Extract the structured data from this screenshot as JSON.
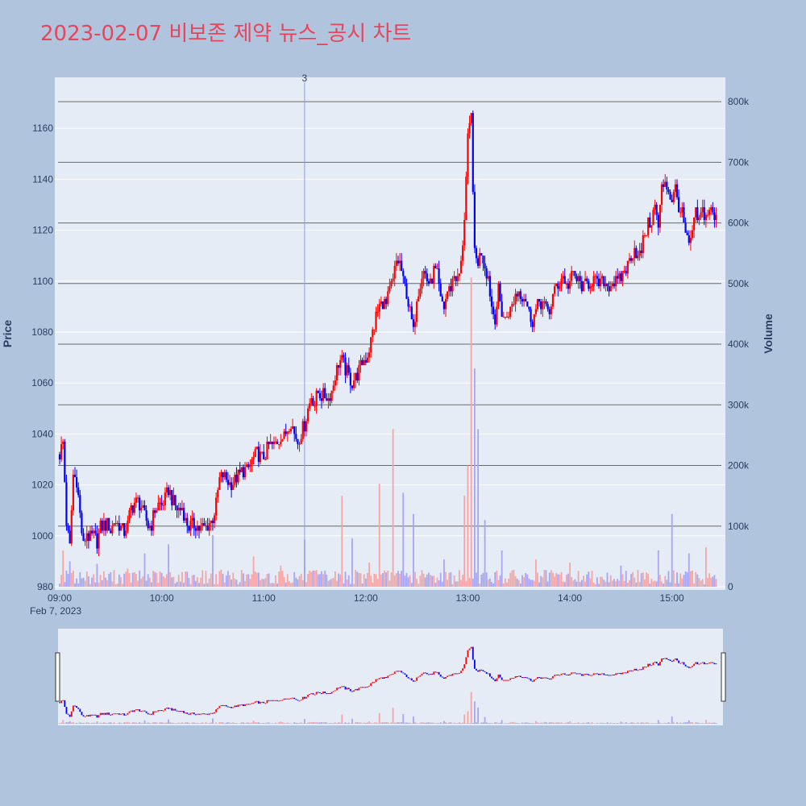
{
  "title": "2023-02-07 비보존 제약 뉴스_공시 차트",
  "colors": {
    "background": "#b0c4de",
    "plot_bg": "#e5ecf6",
    "title": "#e8455a",
    "up": "#ff0000",
    "down": "#0000ff",
    "volume_up": "#f4a6a6",
    "volume_down": "#a6a6f4",
    "annotation_line": "#8a9cf0",
    "volume_grid": "#6a6a6a"
  },
  "chart_data": {
    "type": "candlestick",
    "title": "2023-02-07 비보존 제약 뉴스_공시 차트",
    "ylabel": "Price",
    "y2label": "Volume",
    "date_label": "Feb 7, 2023",
    "xlim": [
      "09:00",
      "15:30"
    ],
    "ylim": [
      980,
      1180
    ],
    "y2lim": [
      0,
      840000
    ],
    "y_ticks": [
      980,
      1000,
      1020,
      1040,
      1060,
      1080,
      1100,
      1120,
      1140,
      1160
    ],
    "y_tick_labels": [
      "980",
      "1000",
      "1020",
      "1040",
      "1060",
      "1080",
      "1100",
      "1120",
      "1140",
      "1160"
    ],
    "y2_ticks": [
      0,
      100000,
      200000,
      300000,
      400000,
      500000,
      600000,
      700000,
      800000
    ],
    "y2_tick_labels": [
      "0",
      "100k",
      "200k",
      "300k",
      "400k",
      "500k",
      "600k",
      "700k",
      "800k"
    ],
    "x_ticks": [
      "09:00",
      "10:00",
      "11:00",
      "12:00",
      "13:00",
      "14:00",
      "15:00"
    ],
    "annotation": {
      "time": "11:24",
      "label": "3"
    },
    "price_path": [
      [
        "09:00",
        1032
      ],
      [
        "09:02",
        1037
      ],
      [
        "09:04",
        1005
      ],
      [
        "09:06",
        995
      ],
      [
        "09:08",
        1024
      ],
      [
        "09:10",
        1022
      ],
      [
        "09:12",
        1008
      ],
      [
        "09:14",
        996
      ],
      [
        "09:16",
        1001
      ],
      [
        "09:18",
        999
      ],
      [
        "09:20",
        1000
      ],
      [
        "09:22",
        998
      ],
      [
        "09:24",
        1003
      ],
      [
        "09:26",
        1004
      ],
      [
        "09:28",
        1005
      ],
      [
        "09:30",
        1002
      ],
      [
        "09:32",
        1006
      ],
      [
        "09:34",
        1005
      ],
      [
        "09:36",
        1003
      ],
      [
        "09:38",
        1002
      ],
      [
        "09:40",
        1004
      ],
      [
        "09:42",
        1011
      ],
      [
        "09:44",
        1013
      ],
      [
        "09:46",
        1014
      ],
      [
        "09:48",
        1011
      ],
      [
        "09:50",
        1008
      ],
      [
        "09:52",
        1004
      ],
      [
        "09:54",
        1005
      ],
      [
        "09:56",
        1010
      ],
      [
        "09:58",
        1012
      ],
      [
        "10:00",
        1012
      ],
      [
        "10:02",
        1014
      ],
      [
        "10:04",
        1018
      ],
      [
        "10:06",
        1015
      ],
      [
        "10:08",
        1012
      ],
      [
        "10:10",
        1010
      ],
      [
        "10:12",
        1011
      ],
      [
        "10:14",
        1006
      ],
      [
        "10:16",
        1004
      ],
      [
        "10:18",
        1004
      ],
      [
        "10:20",
        1004
      ],
      [
        "10:22",
        1003
      ],
      [
        "10:24",
        1003
      ],
      [
        "10:26",
        1003
      ],
      [
        "10:28",
        1005
      ],
      [
        "10:30",
        1007
      ],
      [
        "10:32",
        1012
      ],
      [
        "10:34",
        1022
      ],
      [
        "10:36",
        1024
      ],
      [
        "10:38",
        1022
      ],
      [
        "10:40",
        1020
      ],
      [
        "10:42",
        1021
      ],
      [
        "10:44",
        1023
      ],
      [
        "10:46",
        1024
      ],
      [
        "10:48",
        1026
      ],
      [
        "10:50",
        1025
      ],
      [
        "10:52",
        1028
      ],
      [
        "10:54",
        1030
      ],
      [
        "10:56",
        1033
      ],
      [
        "10:58",
        1031
      ],
      [
        "11:00",
        1031
      ],
      [
        "11:02",
        1034
      ],
      [
        "11:04",
        1036
      ],
      [
        "11:06",
        1035
      ],
      [
        "11:08",
        1037
      ],
      [
        "11:10",
        1039
      ],
      [
        "11:12",
        1039
      ],
      [
        "11:14",
        1042
      ],
      [
        "11:16",
        1045
      ],
      [
        "11:18",
        1040
      ],
      [
        "11:20",
        1037
      ],
      [
        "11:22",
        1040
      ],
      [
        "11:24",
        1044
      ],
      [
        "11:26",
        1050
      ],
      [
        "11:28",
        1055
      ],
      [
        "11:30",
        1052
      ],
      [
        "11:32",
        1056
      ],
      [
        "11:34",
        1055
      ],
      [
        "11:36",
        1055
      ],
      [
        "11:38",
        1054
      ],
      [
        "11:40",
        1057
      ],
      [
        "11:42",
        1063
      ],
      [
        "11:44",
        1068
      ],
      [
        "11:46",
        1069
      ],
      [
        "11:48",
        1065
      ],
      [
        "11:50",
        1063
      ],
      [
        "11:52",
        1060
      ],
      [
        "11:54",
        1062
      ],
      [
        "11:56",
        1065
      ],
      [
        "11:58",
        1068
      ],
      [
        "12:00",
        1070
      ],
      [
        "12:02",
        1073
      ],
      [
        "12:04",
        1080
      ],
      [
        "12:06",
        1086
      ],
      [
        "12:08",
        1090
      ],
      [
        "12:10",
        1092
      ],
      [
        "12:12",
        1090
      ],
      [
        "12:14",
        1096
      ],
      [
        "12:16",
        1100
      ],
      [
        "12:18",
        1108
      ],
      [
        "12:20",
        1107
      ],
      [
        "12:22",
        1100
      ],
      [
        "12:24",
        1095
      ],
      [
        "12:26",
        1088
      ],
      [
        "12:28",
        1080
      ],
      [
        "12:30",
        1094
      ],
      [
        "12:32",
        1100
      ],
      [
        "12:34",
        1104
      ],
      [
        "12:36",
        1101
      ],
      [
        "12:38",
        1098
      ],
      [
        "12:40",
        1104
      ],
      [
        "12:42",
        1102
      ],
      [
        "12:44",
        1092
      ],
      [
        "12:46",
        1090
      ],
      [
        "12:48",
        1096
      ],
      [
        "12:50",
        1098
      ],
      [
        "12:52",
        1103
      ],
      [
        "12:54",
        1100
      ],
      [
        "12:56",
        1106
      ],
      [
        "12:58",
        1125
      ],
      [
        "13:00",
        1155
      ],
      [
        "13:02",
        1165
      ],
      [
        "13:04",
        1110
      ],
      [
        "13:06",
        1108
      ],
      [
        "13:08",
        1112
      ],
      [
        "13:10",
        1106
      ],
      [
        "13:12",
        1102
      ],
      [
        "13:14",
        1090
      ],
      [
        "13:16",
        1086
      ],
      [
        "13:18",
        1096
      ],
      [
        "13:20",
        1088
      ],
      [
        "13:22",
        1085
      ],
      [
        "13:24",
        1088
      ],
      [
        "13:26",
        1090
      ],
      [
        "13:28",
        1095
      ],
      [
        "13:30",
        1096
      ],
      [
        "13:32",
        1095
      ],
      [
        "13:34",
        1093
      ],
      [
        "13:36",
        1087
      ],
      [
        "13:38",
        1085
      ],
      [
        "13:40",
        1088
      ],
      [
        "13:42",
        1092
      ],
      [
        "13:44",
        1092
      ],
      [
        "13:46",
        1089
      ],
      [
        "13:48",
        1088
      ],
      [
        "13:50",
        1094
      ],
      [
        "13:52",
        1098
      ],
      [
        "13:54",
        1100
      ],
      [
        "13:56",
        1102
      ],
      [
        "13:58",
        1098
      ],
      [
        "14:00",
        1100
      ],
      [
        "14:02",
        1103
      ],
      [
        "14:04",
        1100
      ],
      [
        "14:06",
        1099
      ],
      [
        "14:08",
        1097
      ],
      [
        "14:10",
        1099
      ],
      [
        "14:12",
        1100
      ],
      [
        "14:14",
        1101
      ],
      [
        "14:16",
        1098
      ],
      [
        "14:18",
        1099
      ],
      [
        "14:20",
        1100
      ],
      [
        "14:22",
        1098
      ],
      [
        "14:24",
        1099
      ],
      [
        "14:26",
        1100
      ],
      [
        "14:28",
        1099
      ],
      [
        "14:30",
        1101
      ],
      [
        "14:32",
        1104
      ],
      [
        "14:34",
        1106
      ],
      [
        "14:36",
        1110
      ],
      [
        "14:38",
        1113
      ],
      [
        "14:40",
        1109
      ],
      [
        "14:42",
        1112
      ],
      [
        "14:44",
        1119
      ],
      [
        "14:46",
        1122
      ],
      [
        "14:48",
        1124
      ],
      [
        "14:50",
        1129
      ],
      [
        "14:52",
        1121
      ],
      [
        "14:54",
        1136
      ],
      [
        "14:56",
        1140
      ],
      [
        "14:58",
        1135
      ],
      [
        "15:00",
        1132
      ],
      [
        "15:02",
        1136
      ],
      [
        "15:04",
        1130
      ],
      [
        "15:06",
        1126
      ],
      [
        "15:08",
        1118
      ],
      [
        "15:10",
        1113
      ],
      [
        "15:12",
        1120
      ],
      [
        "15:14",
        1126
      ],
      [
        "15:16",
        1123
      ],
      [
        "15:18",
        1128
      ],
      [
        "15:20",
        1125
      ],
      [
        "15:22",
        1129
      ],
      [
        "15:24",
        1126
      ],
      [
        "15:26",
        1124
      ]
    ],
    "volume_spikes": [
      [
        "09:02",
        60000
      ],
      [
        "09:06",
        42000
      ],
      [
        "09:22",
        38000
      ],
      [
        "09:40",
        30000
      ],
      [
        "09:50",
        55000
      ],
      [
        "10:04",
        70000
      ],
      [
        "10:30",
        85000
      ],
      [
        "10:54",
        50000
      ],
      [
        "11:10",
        35000
      ],
      [
        "11:24",
        78000
      ],
      [
        "11:46",
        150000
      ],
      [
        "11:52",
        80000
      ],
      [
        "12:02",
        40000
      ],
      [
        "12:08",
        170000
      ],
      [
        "12:16",
        260000
      ],
      [
        "12:22",
        155000
      ],
      [
        "12:28",
        120000
      ],
      [
        "12:46",
        45000
      ],
      [
        "12:58",
        150000
      ],
      [
        "13:00",
        200000
      ],
      [
        "13:02",
        510000
      ],
      [
        "13:04",
        360000
      ],
      [
        "13:06",
        260000
      ],
      [
        "13:10",
        110000
      ],
      [
        "13:20",
        60000
      ],
      [
        "13:40",
        45000
      ],
      [
        "14:00",
        40000
      ],
      [
        "14:30",
        35000
      ],
      [
        "14:52",
        60000
      ],
      [
        "15:00",
        120000
      ],
      [
        "15:10",
        55000
      ],
      [
        "15:20",
        65000
      ]
    ]
  }
}
